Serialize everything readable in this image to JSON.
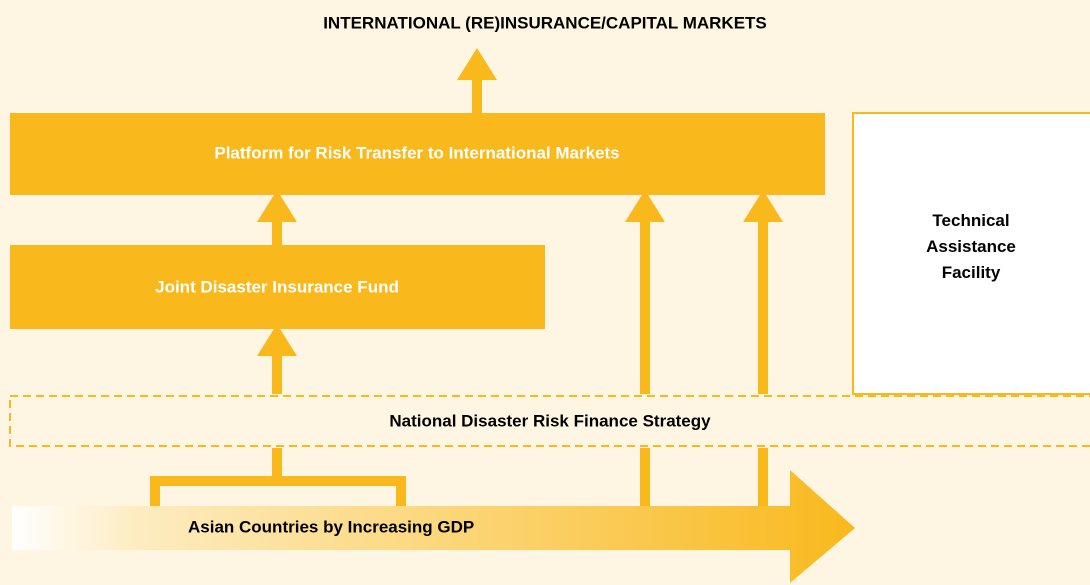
{
  "header": {
    "title": "INTERNATIONAL (RE)INSURANCE/CAPITAL MARKETS"
  },
  "nodes": [
    {
      "label": "Platform for Risk Transfer to International Markets"
    },
    {
      "label": "Joint Disaster Insurance Fund"
    },
    {
      "label": "Technical Assistance Facility"
    },
    {
      "label": "National Disaster Risk Finance Strategy"
    },
    {
      "label": "Asian Countries by Increasing GDP"
    }
  ]
}
